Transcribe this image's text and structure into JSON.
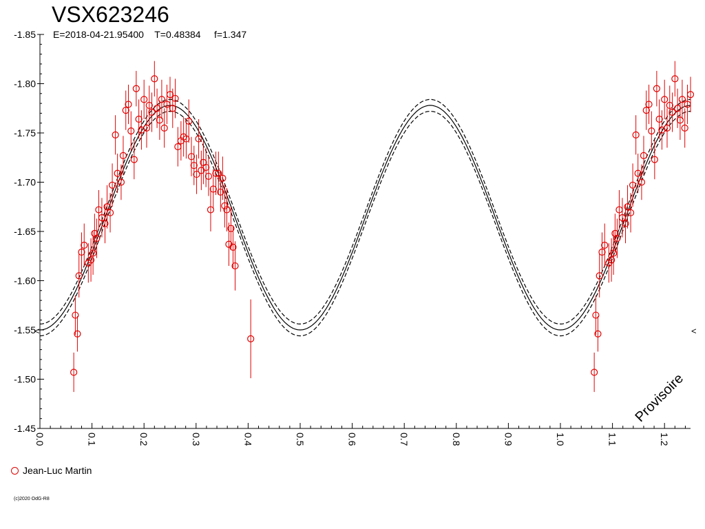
{
  "chart_data": {
    "type": "scatter",
    "title": "VSX623246",
    "subtitle": "E=2018-04-21.95400    T=0.48384     f=1.347",
    "watermark": "Provisoire",
    "copyright": "(c)2020 OdG-R8",
    "xlim": [
      0.0,
      1.25
    ],
    "ylim": [
      -1.85,
      -1.45
    ],
    "y_inverted": true,
    "x_ticks": [
      "0.0",
      "0.1",
      "0.2",
      "0.3",
      "0.4",
      "0.5",
      "0.6",
      "0.7",
      "0.8",
      "0.9",
      "1.0",
      "1.1",
      "1.2"
    ],
    "y_ticks": [
      "-1.85",
      "-1.80",
      "-1.75",
      "-1.70",
      "-1.65",
      "-1.60",
      "-1.55",
      "-1.50",
      "-1.45"
    ],
    "colors": {
      "points": "#e00000",
      "curves": "#000000"
    },
    "legend": {
      "position": "bottom-left",
      "entries": [
        "Jean-Luc Martin"
      ]
    },
    "model_curve": {
      "mean": -1.664,
      "amplitude": 0.114,
      "period_phase": 0.5,
      "band": 0.006
    },
    "series": [
      {
        "name": "Jean-Luc Martin",
        "points": [
          {
            "x": 0.065,
            "y": -1.507,
            "e": 0.02
          },
          {
            "x": 0.068,
            "y": -1.565,
            "e": 0.02
          },
          {
            "x": 0.072,
            "y": -1.546,
            "e": 0.018
          },
          {
            "x": 0.075,
            "y": -1.605,
            "e": 0.022
          },
          {
            "x": 0.08,
            "y": -1.629,
            "e": 0.02
          },
          {
            "x": 0.085,
            "y": -1.636,
            "e": 0.022
          },
          {
            "x": 0.093,
            "y": -1.618,
            "e": 0.02
          },
          {
            "x": 0.098,
            "y": -1.621,
            "e": 0.022
          },
          {
            "x": 0.102,
            "y": -1.628,
            "e": 0.022
          },
          {
            "x": 0.105,
            "y": -1.648,
            "e": 0.02
          },
          {
            "x": 0.109,
            "y": -1.643,
            "e": 0.02
          },
          {
            "x": 0.113,
            "y": -1.672,
            "e": 0.02
          },
          {
            "x": 0.119,
            "y": -1.664,
            "e": 0.02
          },
          {
            "x": 0.125,
            "y": -1.658,
            "e": 0.02
          },
          {
            "x": 0.129,
            "y": -1.675,
            "e": 0.022
          },
          {
            "x": 0.135,
            "y": -1.669,
            "e": 0.02
          },
          {
            "x": 0.139,
            "y": -1.697,
            "e": 0.022
          },
          {
            "x": 0.145,
            "y": -1.748,
            "e": 0.02
          },
          {
            "x": 0.149,
            "y": -1.709,
            "e": 0.02
          },
          {
            "x": 0.156,
            "y": -1.7,
            "e": 0.018
          },
          {
            "x": 0.16,
            "y": -1.727,
            "e": 0.02
          },
          {
            "x": 0.165,
            "y": -1.773,
            "e": 0.02
          },
          {
            "x": 0.17,
            "y": -1.779,
            "e": 0.02
          },
          {
            "x": 0.175,
            "y": -1.752,
            "e": 0.02
          },
          {
            "x": 0.181,
            "y": -1.723,
            "e": 0.02
          },
          {
            "x": 0.185,
            "y": -1.795,
            "e": 0.018
          },
          {
            "x": 0.19,
            "y": -1.764,
            "e": 0.02
          },
          {
            "x": 0.195,
            "y": -1.753,
            "e": 0.02
          },
          {
            "x": 0.2,
            "y": -1.784,
            "e": 0.02
          },
          {
            "x": 0.205,
            "y": -1.755,
            "e": 0.02
          },
          {
            "x": 0.21,
            "y": -1.778,
            "e": 0.02
          },
          {
            "x": 0.215,
            "y": -1.771,
            "e": 0.02
          },
          {
            "x": 0.22,
            "y": -1.805,
            "e": 0.018
          },
          {
            "x": 0.225,
            "y": -1.775,
            "e": 0.02
          },
          {
            "x": 0.23,
            "y": -1.763,
            "e": 0.02
          },
          {
            "x": 0.234,
            "y": -1.784,
            "e": 0.02
          },
          {
            "x": 0.239,
            "y": -1.755,
            "e": 0.02
          },
          {
            "x": 0.244,
            "y": -1.779,
            "e": 0.02
          },
          {
            "x": 0.25,
            "y": -1.789,
            "e": 0.018
          },
          {
            "x": 0.255,
            "y": -1.775,
            "e": 0.02
          },
          {
            "x": 0.26,
            "y": -1.785,
            "e": 0.02
          },
          {
            "x": 0.265,
            "y": -1.736,
            "e": 0.02
          },
          {
            "x": 0.271,
            "y": -1.742,
            "e": 0.02
          },
          {
            "x": 0.276,
            "y": -1.746,
            "e": 0.02
          },
          {
            "x": 0.281,
            "y": -1.744,
            "e": 0.02
          },
          {
            "x": 0.286,
            "y": -1.762,
            "e": 0.022
          },
          {
            "x": 0.291,
            "y": -1.726,
            "e": 0.02
          },
          {
            "x": 0.296,
            "y": -1.717,
            "e": 0.02
          },
          {
            "x": 0.301,
            "y": -1.708,
            "e": 0.02
          },
          {
            "x": 0.305,
            "y": -1.744,
            "e": 0.02
          },
          {
            "x": 0.31,
            "y": -1.712,
            "e": 0.02
          },
          {
            "x": 0.314,
            "y": -1.72,
            "e": 0.022
          },
          {
            "x": 0.319,
            "y": -1.715,
            "e": 0.02
          },
          {
            "x": 0.324,
            "y": -1.706,
            "e": 0.02
          },
          {
            "x": 0.328,
            "y": -1.672,
            "e": 0.022
          },
          {
            "x": 0.333,
            "y": -1.693,
            "e": 0.02
          },
          {
            "x": 0.338,
            "y": -1.709,
            "e": 0.022
          },
          {
            "x": 0.343,
            "y": -1.709,
            "e": 0.022
          },
          {
            "x": 0.347,
            "y": -1.69,
            "e": 0.02
          },
          {
            "x": 0.351,
            "y": -1.704,
            "e": 0.022
          },
          {
            "x": 0.355,
            "y": -1.676,
            "e": 0.022
          },
          {
            "x": 0.359,
            "y": -1.672,
            "e": 0.022
          },
          {
            "x": 0.363,
            "y": -1.637,
            "e": 0.022
          },
          {
            "x": 0.367,
            "y": -1.653,
            "e": 0.022
          },
          {
            "x": 0.371,
            "y": -1.634,
            "e": 0.022
          },
          {
            "x": 0.375,
            "y": -1.615,
            "e": 0.025
          },
          {
            "x": 0.405,
            "y": -1.541,
            "e": 0.04
          }
        ]
      }
    ]
  }
}
